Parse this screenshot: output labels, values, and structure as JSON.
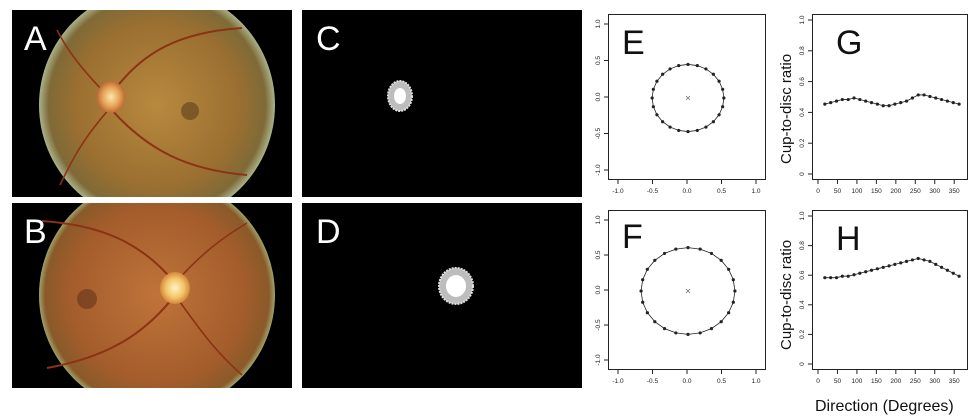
{
  "panels": {
    "A": "A",
    "B": "B",
    "C": "C",
    "D": "D",
    "E": "E",
    "F": "F",
    "G": "G",
    "H": "H"
  },
  "ylabel": "Cup-to-disc ratio",
  "xlabel": "Direction (Degrees)",
  "colors": {
    "point": "#222222",
    "axis": "#222222",
    "background": "#000000"
  },
  "chart_data": [
    {
      "id": "E",
      "type": "scatter",
      "xlim": [
        -1.0,
        1.0
      ],
      "ylim": [
        -1.0,
        1.0
      ],
      "xticks": [
        "-1.0",
        "-0.5",
        "0.0",
        "0.5",
        "1.0"
      ],
      "yticks": [
        "-1.0",
        "-0.5",
        "0.0",
        "0.5",
        "1.0"
      ],
      "center": [
        0.0,
        0.0
      ],
      "radius_x": 0.52,
      "radius_y": 0.46,
      "n_points": 24
    },
    {
      "id": "F",
      "type": "scatter",
      "xlim": [
        -1.0,
        1.0
      ],
      "ylim": [
        -1.0,
        1.0
      ],
      "xticks": [
        "-1.0",
        "-0.5",
        "0.0",
        "0.5",
        "1.0"
      ],
      "yticks": [
        "-1.0",
        "-0.5",
        "0.0",
        "0.5",
        "1.0"
      ],
      "center": [
        0.0,
        0.0
      ],
      "radius_x": 0.68,
      "radius_y": 0.62,
      "n_points": 24
    },
    {
      "id": "G",
      "type": "line",
      "xlim": [
        0,
        370
      ],
      "ylim": [
        0,
        1.0
      ],
      "xticks": [
        "0",
        "50",
        "100",
        "150",
        "200",
        "250",
        "300",
        "350"
      ],
      "yticks": [
        "0",
        "0.2",
        "0.4",
        "0.6",
        "0.8",
        "1.0"
      ],
      "x": [
        15,
        30,
        45,
        60,
        75,
        90,
        105,
        120,
        135,
        150,
        165,
        180,
        195,
        210,
        225,
        240,
        255,
        270,
        285,
        300,
        315,
        330,
        345,
        360
      ],
      "y": [
        0.46,
        0.47,
        0.48,
        0.49,
        0.49,
        0.5,
        0.49,
        0.48,
        0.47,
        0.46,
        0.45,
        0.45,
        0.46,
        0.47,
        0.48,
        0.5,
        0.52,
        0.52,
        0.51,
        0.5,
        0.49,
        0.48,
        0.47,
        0.46
      ]
    },
    {
      "id": "H",
      "type": "line",
      "xlim": [
        0,
        370
      ],
      "ylim": [
        0,
        1.0
      ],
      "xticks": [
        "0",
        "50",
        "100",
        "150",
        "200",
        "250",
        "300",
        "350"
      ],
      "yticks": [
        "0",
        "0.2",
        "0.4",
        "0.6",
        "0.8",
        "1.0"
      ],
      "x": [
        15,
        30,
        45,
        60,
        75,
        90,
        105,
        120,
        135,
        150,
        165,
        180,
        195,
        210,
        225,
        240,
        255,
        270,
        285,
        300,
        315,
        330,
        345,
        360
      ],
      "y": [
        0.59,
        0.59,
        0.59,
        0.6,
        0.6,
        0.61,
        0.62,
        0.63,
        0.64,
        0.65,
        0.66,
        0.67,
        0.68,
        0.69,
        0.7,
        0.71,
        0.72,
        0.71,
        0.7,
        0.68,
        0.66,
        0.64,
        0.62,
        0.6
      ]
    }
  ]
}
